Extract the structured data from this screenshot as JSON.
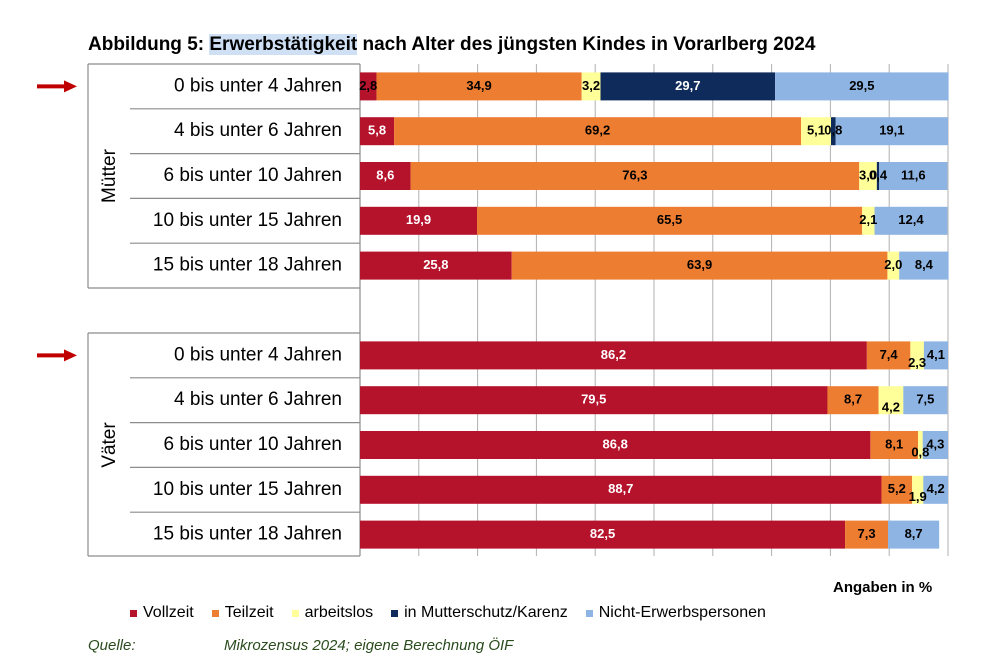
{
  "title": {
    "prefix": "Abbildung 5: ",
    "highlight": "Erwerbstätigkeit",
    "suffix": " nach Alter des jüngsten Kindes in Vorarlberg 2024"
  },
  "units_label": "Angaben in %",
  "source": {
    "label": "Quelle:",
    "value": "Mikrozensus 2024; eigene Berechnung ÖIF"
  },
  "colors": {
    "series": [
      "#b5122c",
      "#ed7d31",
      "#ffff99",
      "#0f2b5b",
      "#8db4e2"
    ],
    "arrow": "#c00000",
    "grid": "#a6a6a6"
  },
  "chart_data": {
    "type": "bar",
    "orientation": "horizontal",
    "stacked": true,
    "xlim": [
      0,
      100
    ],
    "unit": "%",
    "series_names": [
      "Vollzeit",
      "Teilzeit",
      "arbeitslos",
      "in Mutterschutz/Karenz",
      "Nicht-Erwerbspersonen"
    ],
    "groups": [
      {
        "name": "Mütter",
        "rows": [
          {
            "category": "0 bis unter 4 Jahren",
            "values": [
              2.8,
              34.9,
              3.2,
              29.7,
              29.5
            ],
            "labels": [
              "2,8",
              "34,9",
              "3,2",
              "29,7",
              "29,5"
            ],
            "highlighted": true
          },
          {
            "category": "4 bis unter 6 Jahren",
            "values": [
              5.8,
              69.2,
              5.1,
              0.8,
              19.1
            ],
            "labels": [
              "5,8",
              "69,2",
              "5,1",
              "0,8",
              "19,1"
            ],
            "highlighted": false
          },
          {
            "category": "6 bis unter 10 Jahren",
            "values": [
              8.6,
              76.3,
              3.0,
              0.4,
              11.6
            ],
            "labels": [
              "8,6",
              "76,3",
              "3,0",
              "0,4",
              "11,6"
            ],
            "highlighted": false
          },
          {
            "category": "10 bis unter 15 Jahren",
            "values": [
              19.9,
              65.5,
              2.1,
              0,
              12.4
            ],
            "labels": [
              "19,9",
              "65,5",
              "2,1",
              "",
              "12,4"
            ],
            "highlighted": false
          },
          {
            "category": "15 bis unter 18 Jahren",
            "values": [
              25.8,
              63.9,
              2.0,
              0,
              8.4
            ],
            "labels": [
              "25,8",
              "63,9",
              "2,0",
              "",
              "8,4"
            ],
            "highlighted": false
          }
        ]
      },
      {
        "name": "Väter",
        "rows": [
          {
            "category": "0 bis unter 4 Jahren",
            "values": [
              86.2,
              7.4,
              2.3,
              0,
              4.1
            ],
            "labels": [
              "86,2",
              "7,4",
              "2,3",
              "",
              "4,1"
            ],
            "highlighted": true
          },
          {
            "category": "4 bis unter 6 Jahren",
            "values": [
              79.5,
              8.7,
              4.2,
              0,
              7.5
            ],
            "labels": [
              "79,5",
              "8,7",
              "4,2",
              "",
              "7,5"
            ],
            "highlighted": false
          },
          {
            "category": "6 bis unter 10 Jahren",
            "values": [
              86.8,
              8.1,
              0.8,
              0,
              4.3
            ],
            "labels": [
              "86,8",
              "8,1",
              "0,8",
              "",
              "4,3"
            ],
            "highlighted": false
          },
          {
            "category": "10 bis unter 15 Jahren",
            "values": [
              88.7,
              5.2,
              1.9,
              0,
              4.2
            ],
            "labels": [
              "88,7",
              "5,2",
              "1,9",
              "",
              "4,2"
            ],
            "highlighted": false
          },
          {
            "category": "15 bis unter 18 Jahren",
            "values": [
              82.5,
              7.3,
              0,
              0,
              8.7
            ],
            "labels": [
              "82,5",
              "7,3",
              "",
              "",
              "8,7"
            ],
            "highlighted": false
          }
        ]
      }
    ]
  }
}
